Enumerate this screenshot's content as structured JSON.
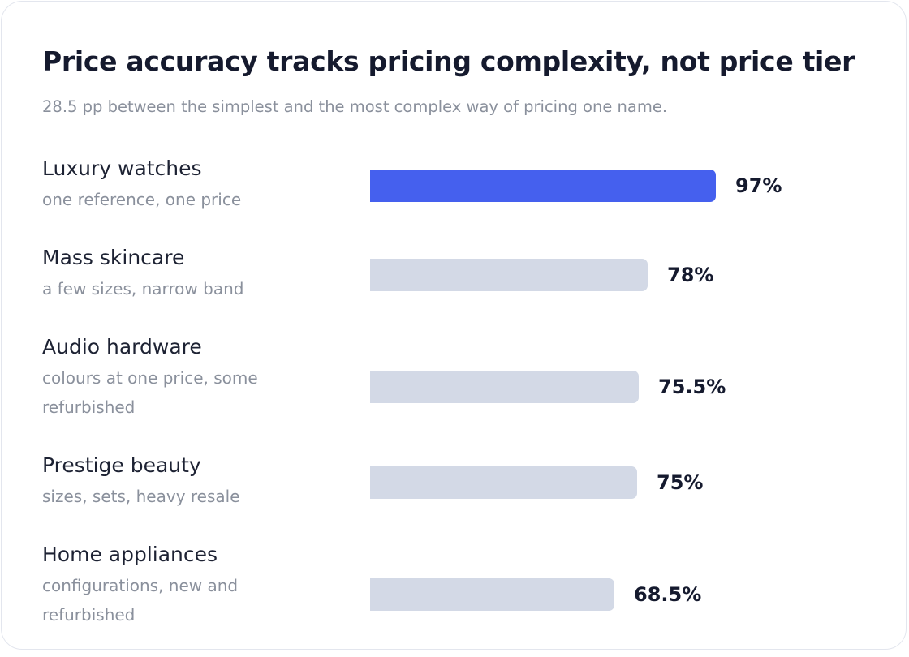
{
  "title": "Price accuracy tracks pricing complexity, not price tier",
  "subtitle": "28.5 pp between the simplest and the most complex way of pricing one name.",
  "colors": {
    "highlight": "#4560ee",
    "bar": "#d3d9e6",
    "title": "#151a2e",
    "muted": "#8a909c"
  },
  "chart_data": {
    "type": "bar",
    "orientation": "horizontal",
    "title": "Price accuracy tracks pricing complexity, not price tier",
    "subtitle": "28.5 pp between the simplest and the most complex way of pricing one name.",
    "categories": [
      "Luxury watches",
      "Mass skincare",
      "Audio hardware",
      "Prestige beauty",
      "Home appliances"
    ],
    "descriptions": [
      "one reference, one price",
      "a few sizes, narrow band",
      "colours at one price, some refurbished",
      "sizes, sets, heavy resale",
      "configurations, new and refurbished"
    ],
    "values": [
      97,
      78,
      75.5,
      75,
      68.5
    ],
    "value_labels": [
      "97%",
      "78%",
      "75.5%",
      "75%",
      "68.5%"
    ],
    "highlighted": [
      true,
      false,
      false,
      false,
      false
    ],
    "unit": "%",
    "xlim": [
      0,
      100
    ],
    "grid": false,
    "legend": "none"
  }
}
